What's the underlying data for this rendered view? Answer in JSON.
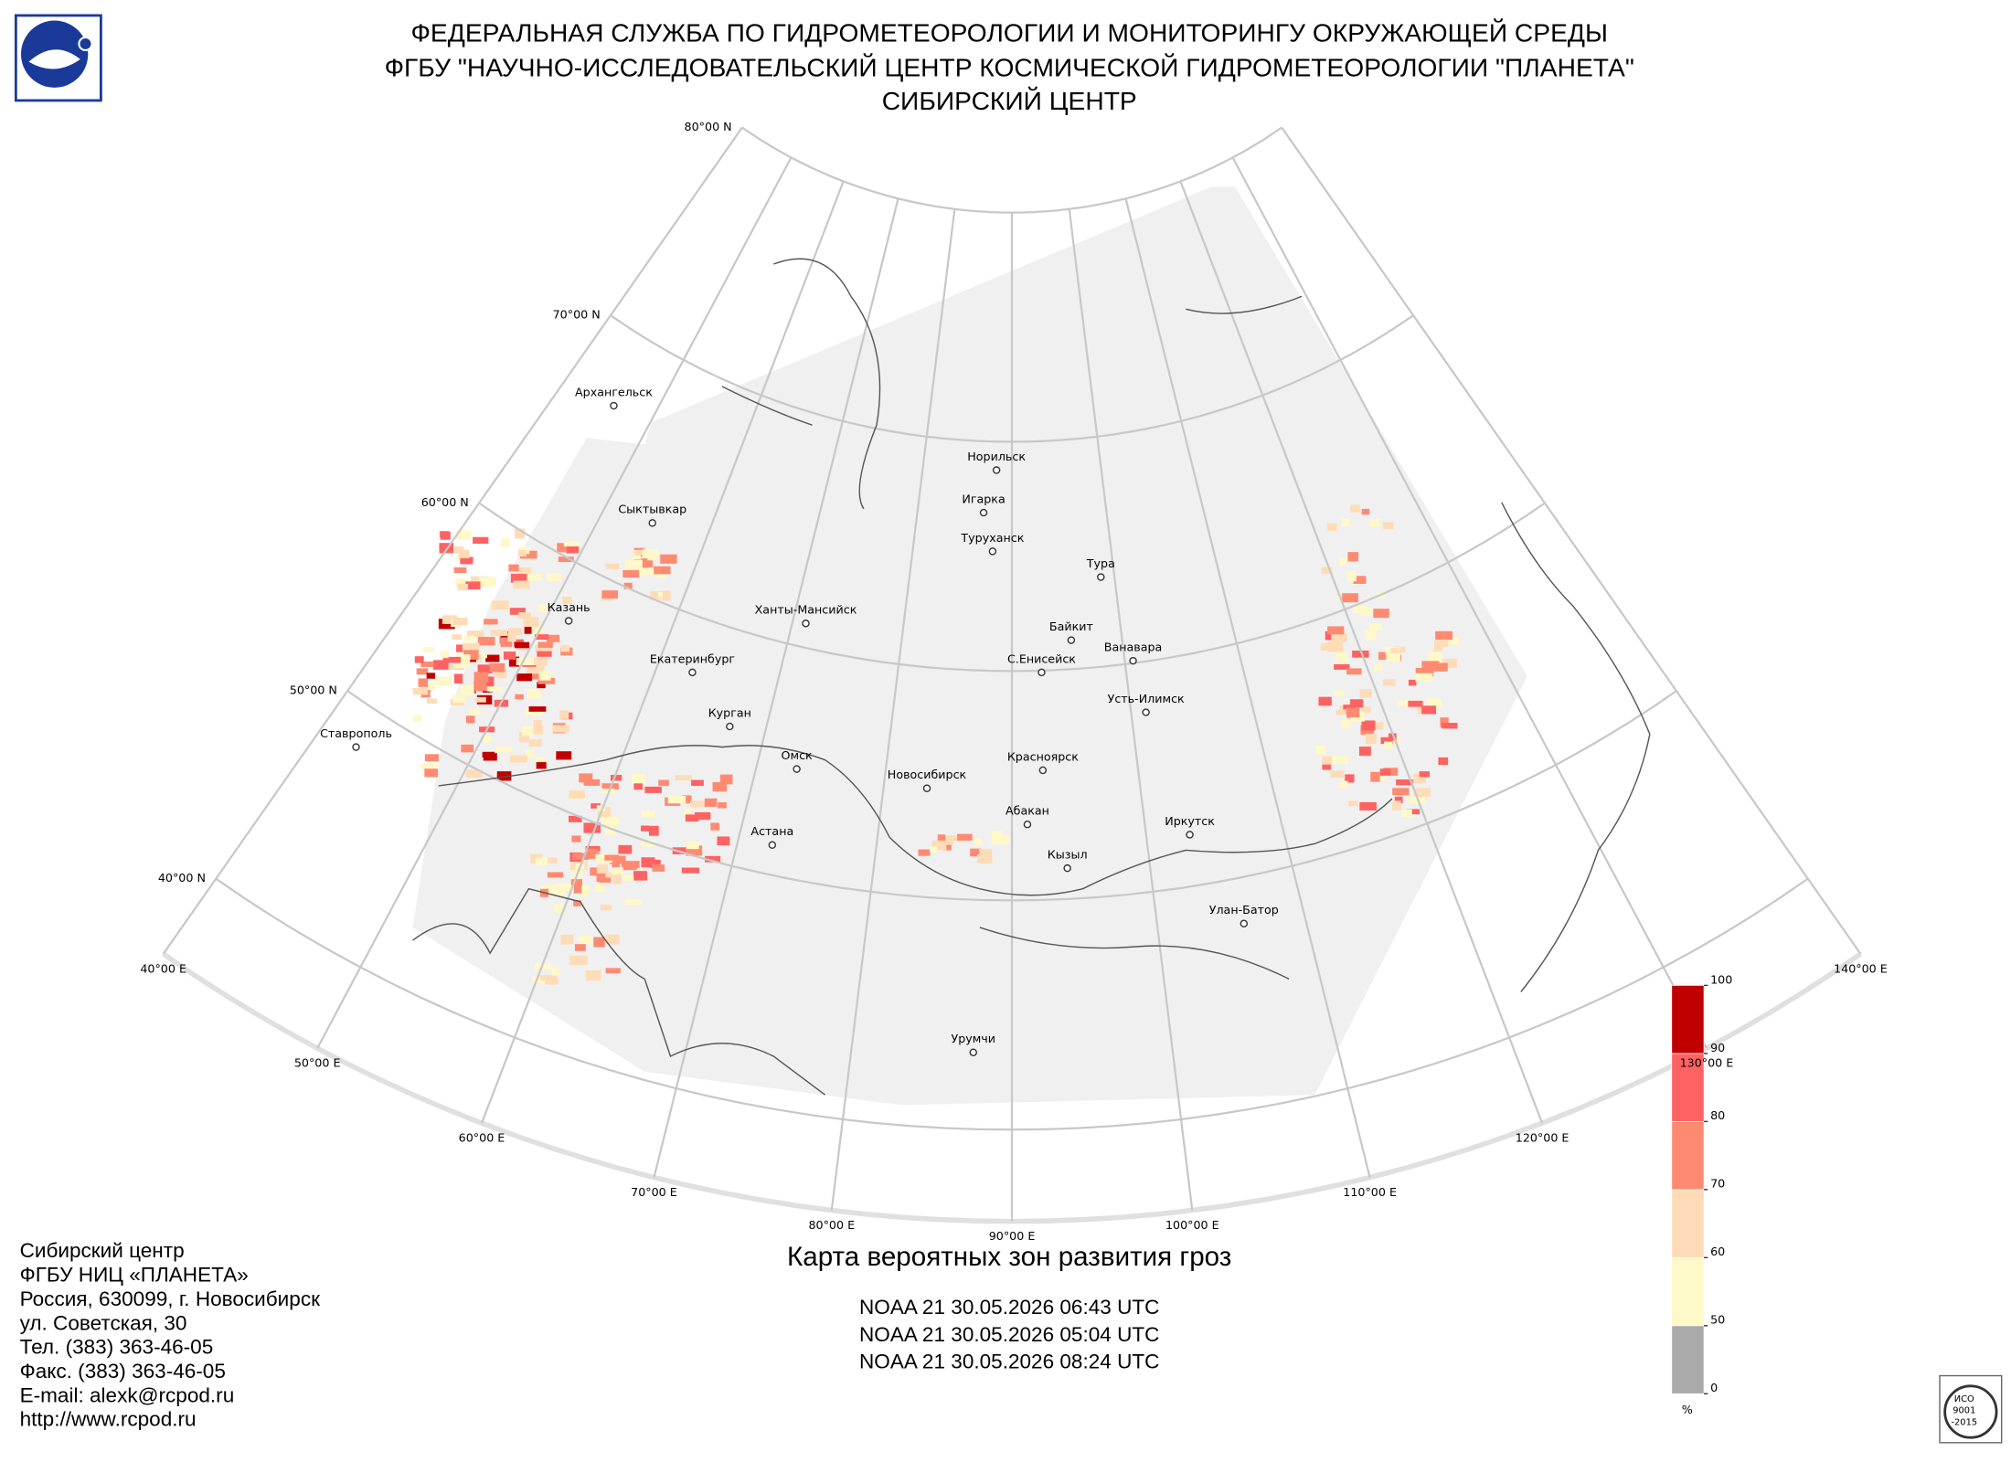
{
  "header": {
    "lines": [
      "ФЕДЕРАЛЬНАЯ СЛУЖБА ПО ГИДРОМЕТЕОРОЛОГИИ И МОНИТОРИНГУ ОКРУЖАЮЩЕЙ СРЕДЫ",
      "ФГБУ \"НАУЧНО-ИССЛЕДОВАТЕЛЬСКИЙ ЦЕНТР КОСМИЧЕСКОЙ ГИДРОМЕТЕОРОЛОГИИ \"ПЛАНЕТА\"",
      "СИБИРСКИЙ ЦЕНТР"
    ]
  },
  "map": {
    "lat_labels": [
      "80°00 N",
      "70°00 N",
      "60°00 N",
      "50°00 N",
      "40°00 N"
    ],
    "lon_labels": [
      "40°00 E",
      "50°00 E",
      "60°00 E",
      "70°00 E",
      "80°00 E",
      "90°00 E",
      "100°00 E",
      "110°00 E",
      "120°00 E",
      "130°00 E",
      "140°00 E"
    ],
    "cities": [
      "Архангельск",
      "Сыктывкар",
      "Казань",
      "Ханты-Мансийск",
      "Екатеринбург",
      "Курган",
      "Ставрополь",
      "Омск",
      "Новосибирск",
      "Астана",
      "Норильск",
      "Игарка",
      "Туруханск",
      "Тура",
      "Байкит",
      "С.Енисейск",
      "Ванавара",
      "Усть-Илимск",
      "Красноярск",
      "Абакан",
      "Кызыл",
      "Иркутск",
      "Улан-Батор",
      "Урумчи"
    ]
  },
  "legend": {
    "bounds": [
      0,
      50,
      60,
      70,
      80,
      90,
      100
    ],
    "colors": [
      "#aaaaaa",
      "#fff8c8",
      "#ffdcb8",
      "#ff8a72",
      "#ff6262",
      "#c00000"
    ],
    "unit": "%"
  },
  "caption": {
    "title": "Карта вероятных зон развития гроз",
    "passes": [
      "NOAA 21 30.05.2026  06:43 UTC",
      "NOAA 21 30.05.2026  05:04 UTC",
      "NOAA 21 30.05.2026  08:24 UTC"
    ]
  },
  "contacts": [
    "Сибирский центр",
    "ФГБУ НИЦ «ПЛАНЕТА»",
    "Россия, 630099, г. Новосибирск",
    "ул. Советская, 30",
    "Тел. (383) 363-46-05",
    "Факс. (383) 363-46-05",
    "E-mail: alexk@rcpod.ru",
    "http://www.rcpod.ru"
  ],
  "badge": [
    "ИСО",
    "9001",
    "-2015"
  ]
}
